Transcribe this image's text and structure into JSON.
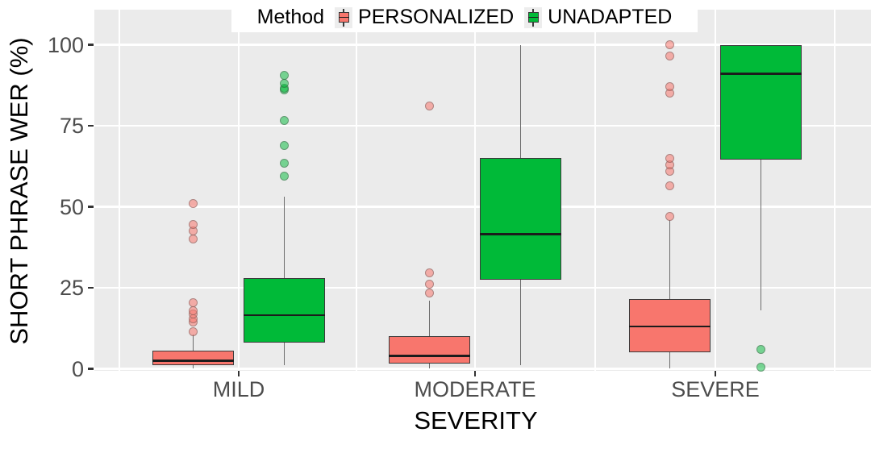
{
  "chart_data": {
    "type": "boxplot",
    "title": "",
    "xlabel": "SEVERITY",
    "ylabel": "SHORT PHRASE WER (%)",
    "ylim": [
      0,
      100
    ],
    "yticks": [
      0,
      25,
      50,
      75,
      100
    ],
    "categories": [
      "MILD",
      "MODERATE",
      "SEVERE"
    ],
    "grid": "white major gridlines on gray panel, legend top center inside plot",
    "legend": {
      "title": "Method",
      "position": "top",
      "entries": [
        {
          "label": "PERSONALIZED",
          "color": "#F8766D"
        },
        {
          "label": "UNADAPTED",
          "color": "#00BA38"
        }
      ]
    },
    "series": [
      {
        "name": "PERSONALIZED",
        "color": "#F8766D",
        "boxes": [
          {
            "category": "MILD",
            "whisker_low": 0,
            "q1": 1,
            "median": 2.5,
            "q3": 5.5,
            "whisker_high": 10.5,
            "outliers": [
              11.5,
              14.5,
              15.5,
              17,
              18,
              20.5,
              40,
              42.5,
              44.5,
              51
            ]
          },
          {
            "category": "MODERATE",
            "whisker_low": 0,
            "q1": 1.5,
            "median": 4,
            "q3": 10,
            "whisker_high": 21,
            "outliers": [
              23.5,
              26,
              29.5,
              81
            ]
          },
          {
            "category": "SEVERE",
            "whisker_low": 0,
            "q1": 5,
            "median": 13,
            "q3": 21.5,
            "whisker_high": 46,
            "outliers": [
              47,
              56.5,
              61,
              63,
              65,
              85,
              87,
              96.5,
              100
            ]
          }
        ]
      },
      {
        "name": "UNADAPTED",
        "color": "#00BA38",
        "boxes": [
          {
            "category": "MILD",
            "whisker_low": 1,
            "q1": 8,
            "median": 16.5,
            "q3": 28,
            "whisker_high": 53,
            "outliers": [
              59.5,
              63.5,
              69,
              76.5,
              86,
              86.5,
              88,
              90.5
            ]
          },
          {
            "category": "MODERATE",
            "whisker_low": 1,
            "q1": 27.5,
            "median": 41.5,
            "q3": 65,
            "whisker_high": 100,
            "outliers": []
          },
          {
            "category": "SEVERE",
            "whisker_low": 18,
            "q1": 64.5,
            "median": 91,
            "q3": 100,
            "whisker_high": 100,
            "outliers": [
              6,
              0.5
            ]
          }
        ]
      }
    ],
    "colors": {
      "panel_bg": "#EBEBEB",
      "grid": "#FFFFFF",
      "box_border": "#3A3A3A",
      "median": "#1C1C1C",
      "whisker": "#6B6B6B",
      "tick_mark": "#333333",
      "tick_label": "#4D4D4D",
      "axis_title": "#000000",
      "outlier_ring": "rgba(70,70,70,0.40)"
    }
  }
}
